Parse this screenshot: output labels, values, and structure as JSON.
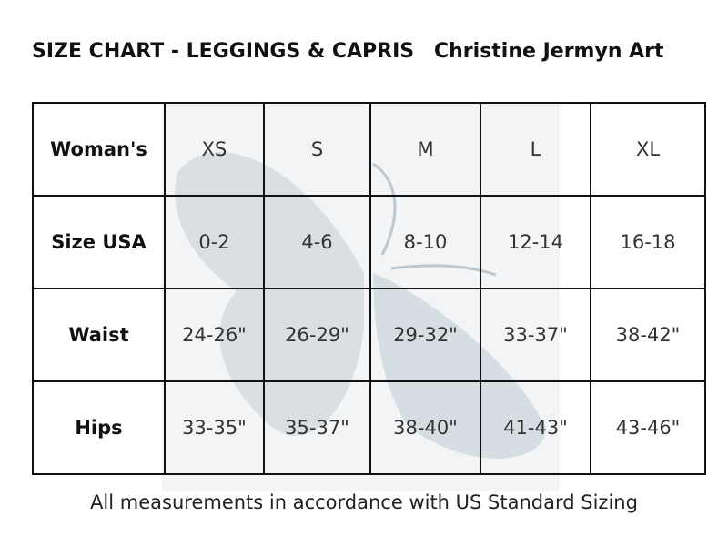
{
  "header": {
    "title": "SIZE CHART - LEGGINGS & CAPRIS",
    "brand": "Christine Jermyn Art"
  },
  "table": {
    "rows": [
      [
        "Woman's",
        "XS",
        "S",
        "M",
        "L",
        "XL"
      ],
      [
        "Size USA",
        "0-2",
        "4-6",
        "8-10",
        "12-14",
        "16-18"
      ],
      [
        "Waist",
        "24-26\"",
        "26-29\"",
        "29-32\"",
        "33-37\"",
        "38-42\""
      ],
      [
        "Hips",
        "33-35\"",
        "35-37\"",
        "38-40\"",
        "41-43\"",
        "43-46\""
      ]
    ]
  },
  "footer": {
    "note": "All measurements in accordance with US Standard Sizing"
  }
}
